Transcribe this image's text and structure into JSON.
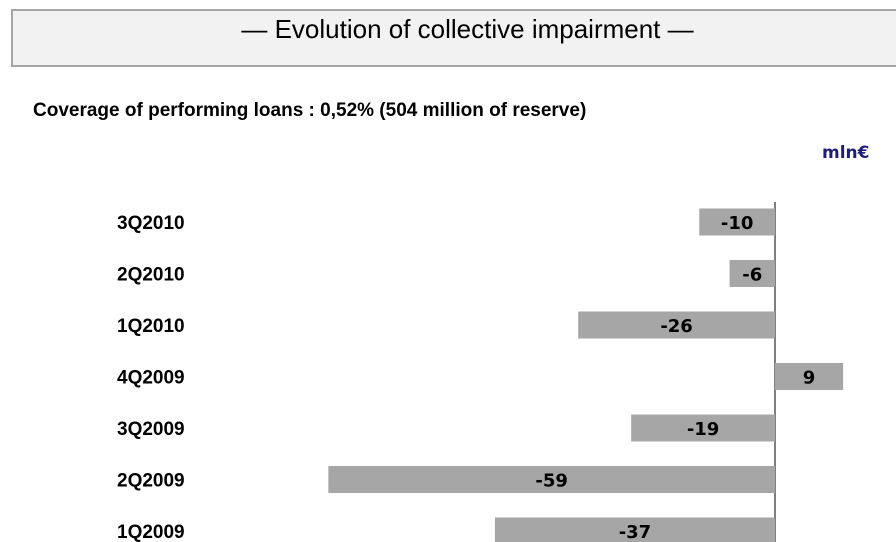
{
  "header": {
    "title": "— Evolution of collective impairment —"
  },
  "subtitle": "Coverage of performing loans : 0,52% (504 million of reserve)",
  "unit": "mln€",
  "chart_data": {
    "type": "bar",
    "orientation": "horizontal",
    "categories": [
      "3Q2010",
      "2Q2010",
      "1Q2010",
      "4Q2009",
      "3Q2009",
      "2Q2009",
      "1Q2009"
    ],
    "values": [
      -10,
      -6,
      -26,
      9,
      -19,
      -59,
      -37
    ],
    "data_labels": [
      "-10",
      "-6",
      "-26",
      "9",
      "-19",
      "-59",
      "-37"
    ],
    "grid": false,
    "legend": "none",
    "colors": {
      "bar": "#a6a6a6",
      "axis": "#7f7f7f"
    }
  }
}
